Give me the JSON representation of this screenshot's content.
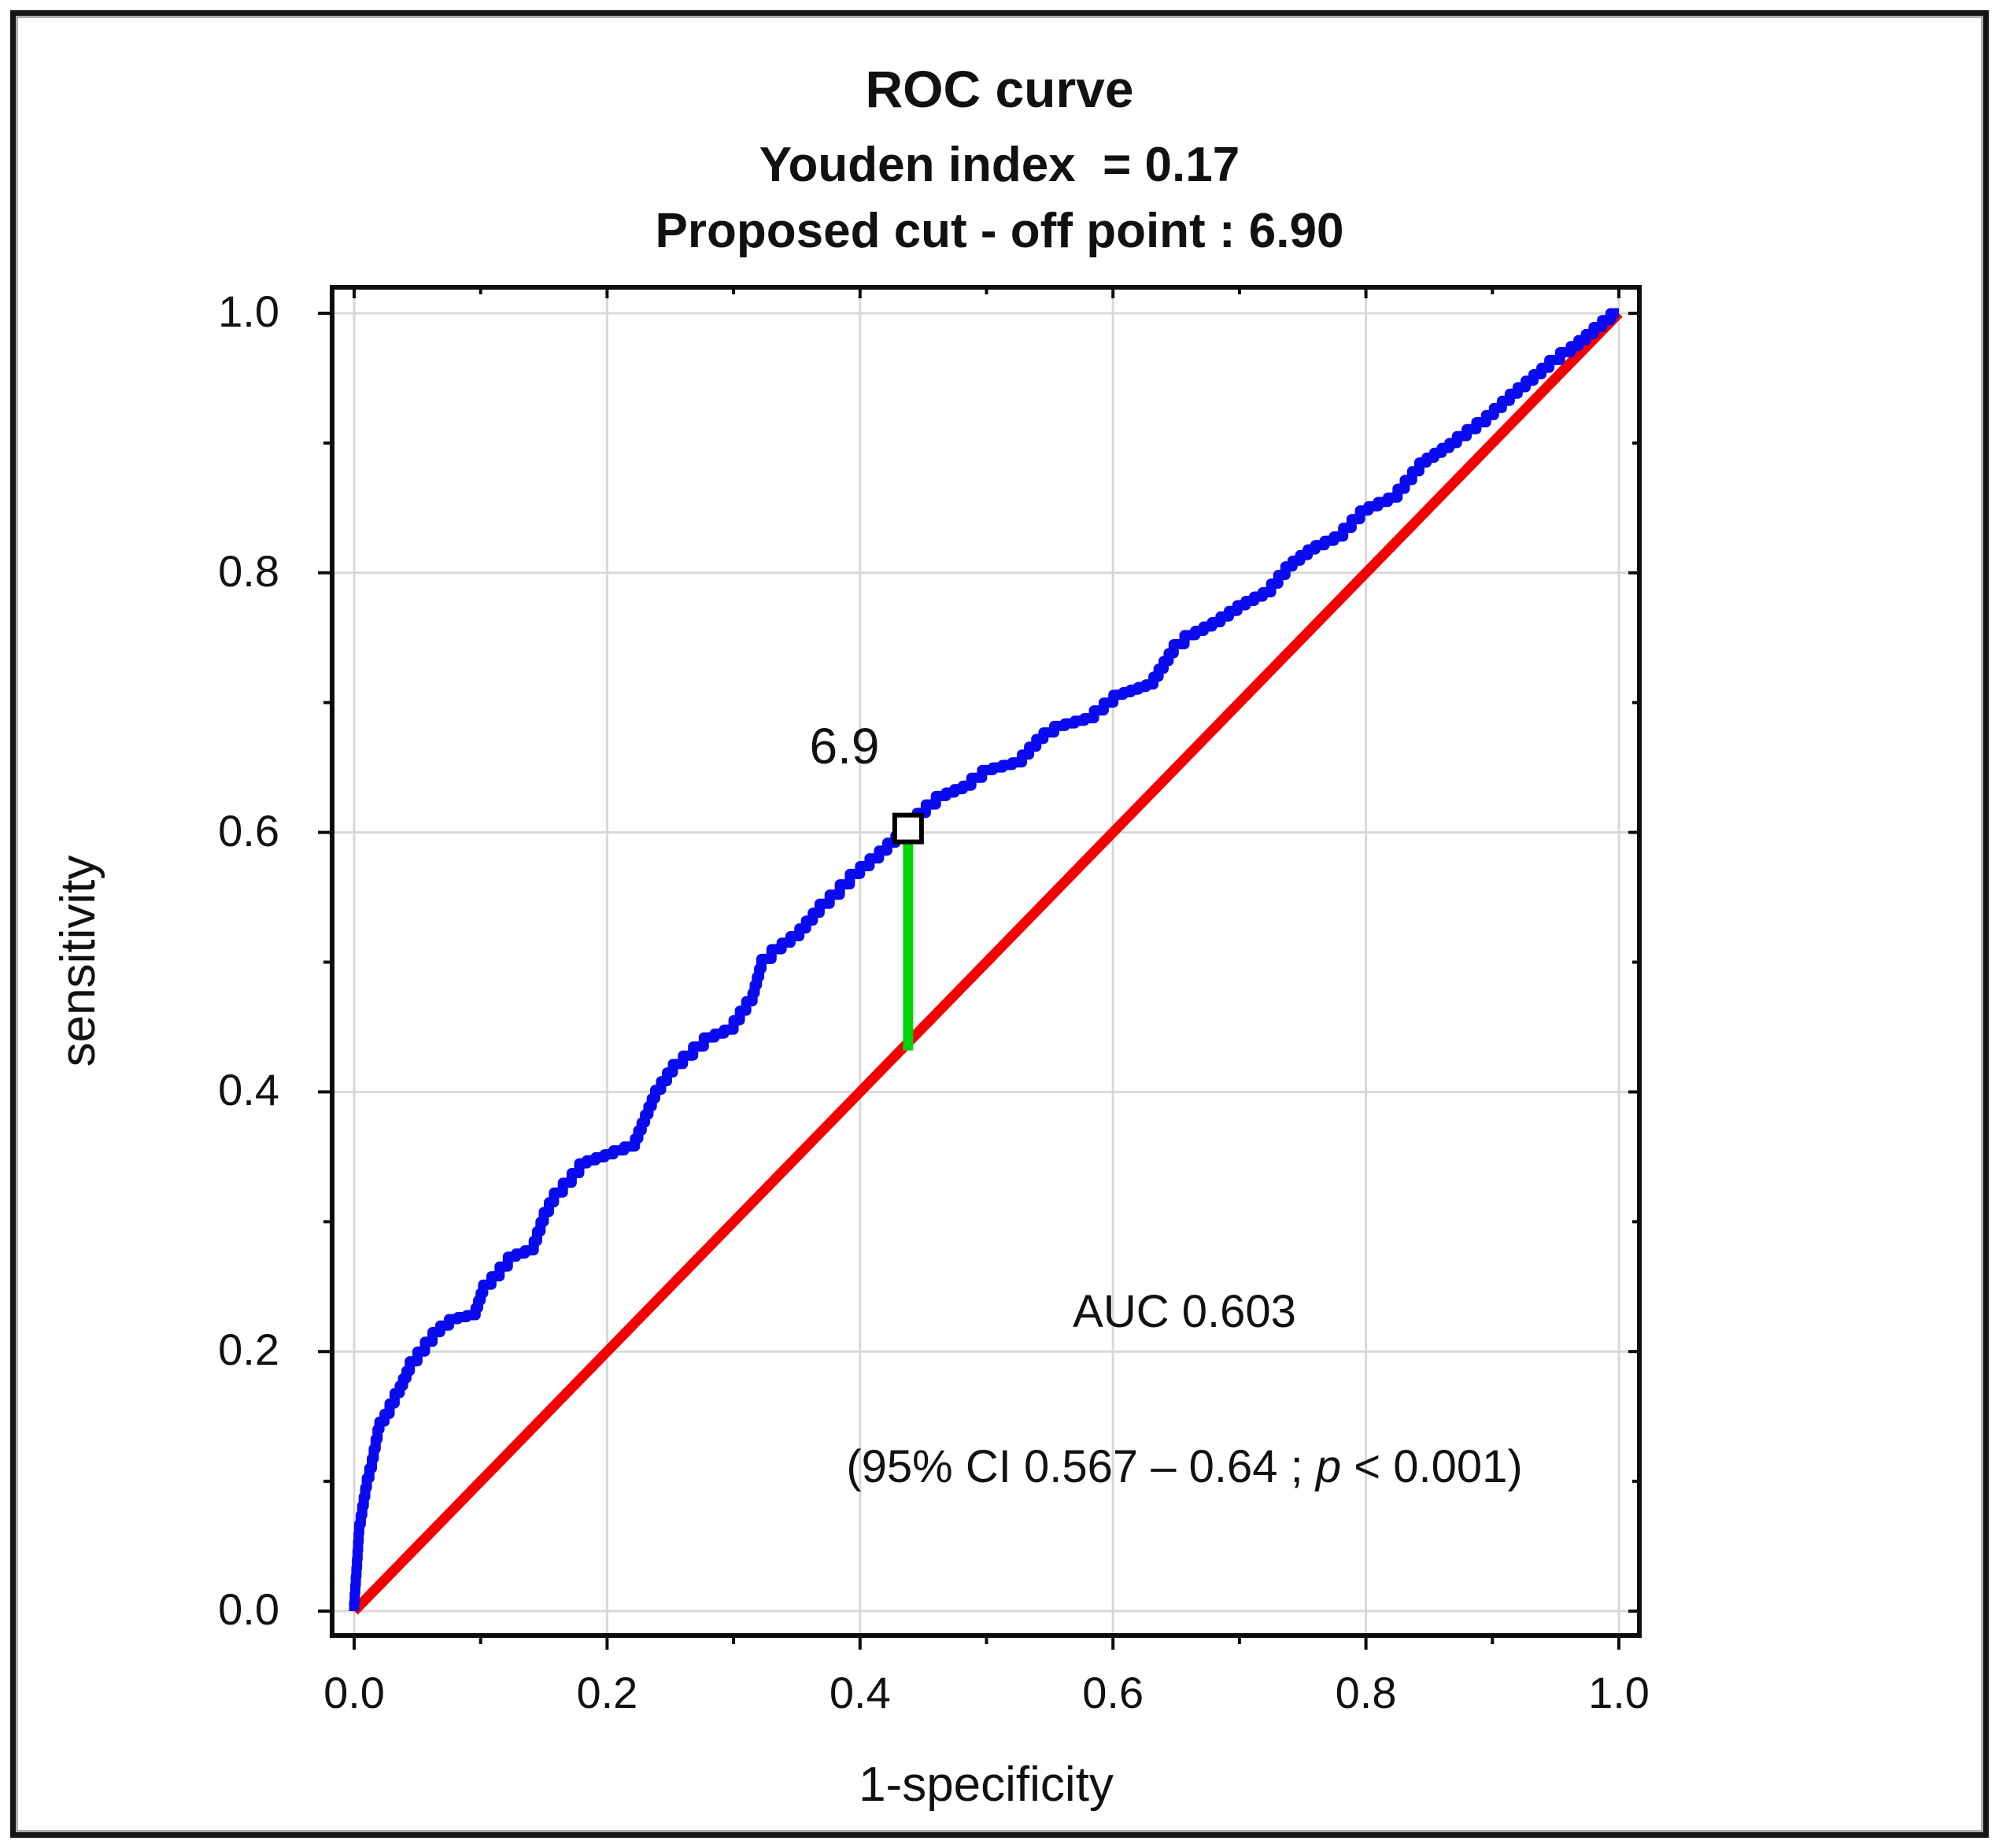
{
  "figure": {
    "titles": {
      "line1": "ROC curve",
      "line2": "Youden index  = 0.17",
      "line3": "Proposed cut - off point : 6.90"
    },
    "annotations": {
      "cutoff_label": "6.9",
      "auc_text": "AUC 0.603",
      "ci_prefix": "(95% CI 0.567 – 0.64 ; ",
      "ci_italic": "p",
      "ci_suffix": " < 0.001)"
    }
  },
  "chart_data": {
    "type": "line",
    "title": "ROC curve",
    "subtitle": [
      "Youden index  = 0.17",
      "Proposed cut - off point : 6.90"
    ],
    "xlabel": "1-specificity",
    "ylabel": "sensitivity",
    "xlim": [
      0.0,
      1.0
    ],
    "ylim": [
      0.0,
      1.0
    ],
    "xticks": [
      0.0,
      0.2,
      0.4,
      0.6,
      0.8,
      1.0
    ],
    "yticks": [
      0.0,
      0.2,
      0.4,
      0.6,
      0.8,
      1.0
    ],
    "xtick_labels": [
      "0.0",
      "0.2",
      "0.4",
      "0.6",
      "0.8",
      "1.0"
    ],
    "ytick_labels": [
      "0.0",
      "0.2",
      "0.4",
      "0.6",
      "0.8",
      "1.0"
    ],
    "minor_tick_step": 0.1,
    "grid": true,
    "legend": "none",
    "colors": {
      "roc": "#0A0AF0",
      "diagonal": "#F40000",
      "cutoff_line": "#00D40A",
      "marker_stroke": "#000000",
      "marker_fill": "#FFFFFF",
      "grid": "#D8D8D8",
      "frame": "#0D0D0D",
      "tick": "#0D0D0D",
      "text": "#111111"
    },
    "series": [
      {
        "name": "empirical ROC curve",
        "style": "staircase",
        "points": [
          [
            0.0,
            0.0
          ],
          [
            0.004,
            0.06
          ],
          [
            0.01,
            0.095
          ],
          [
            0.014,
            0.11
          ],
          [
            0.02,
            0.14
          ],
          [
            0.028,
            0.152
          ],
          [
            0.036,
            0.168
          ],
          [
            0.044,
            0.185
          ],
          [
            0.056,
            0.2
          ],
          [
            0.068,
            0.215
          ],
          [
            0.082,
            0.225
          ],
          [
            0.096,
            0.228
          ],
          [
            0.102,
            0.245
          ],
          [
            0.115,
            0.258
          ],
          [
            0.128,
            0.273
          ],
          [
            0.142,
            0.278
          ],
          [
            0.15,
            0.3
          ],
          [
            0.158,
            0.315
          ],
          [
            0.172,
            0.33
          ],
          [
            0.184,
            0.345
          ],
          [
            0.205,
            0.352
          ],
          [
            0.222,
            0.358
          ],
          [
            0.238,
            0.395
          ],
          [
            0.252,
            0.415
          ],
          [
            0.268,
            0.428
          ],
          [
            0.285,
            0.442
          ],
          [
            0.3,
            0.448
          ],
          [
            0.315,
            0.47
          ],
          [
            0.322,
            0.495
          ],
          [
            0.338,
            0.51
          ],
          [
            0.352,
            0.52
          ],
          [
            0.368,
            0.538
          ],
          [
            0.384,
            0.552
          ],
          [
            0.4,
            0.568
          ],
          [
            0.415,
            0.58
          ],
          [
            0.428,
            0.592
          ],
          [
            0.438,
            0.603
          ],
          [
            0.452,
            0.615
          ],
          [
            0.468,
            0.628
          ],
          [
            0.488,
            0.636
          ],
          [
            0.505,
            0.648
          ],
          [
            0.528,
            0.654
          ],
          [
            0.545,
            0.672
          ],
          [
            0.562,
            0.682
          ],
          [
            0.585,
            0.688
          ],
          [
            0.608,
            0.706
          ],
          [
            0.632,
            0.714
          ],
          [
            0.648,
            0.738
          ],
          [
            0.665,
            0.752
          ],
          [
            0.685,
            0.762
          ],
          [
            0.705,
            0.775
          ],
          [
            0.725,
            0.785
          ],
          [
            0.742,
            0.805
          ],
          [
            0.76,
            0.818
          ],
          [
            0.782,
            0.828
          ],
          [
            0.802,
            0.848
          ],
          [
            0.825,
            0.858
          ],
          [
            0.848,
            0.885
          ],
          [
            0.872,
            0.9
          ],
          [
            0.895,
            0.916
          ],
          [
            0.92,
            0.938
          ],
          [
            0.945,
            0.958
          ],
          [
            0.962,
            0.97
          ],
          [
            0.98,
            0.984
          ],
          [
            1.0,
            1.0
          ]
        ]
      },
      {
        "name": "reference diagonal",
        "style": "line",
        "points": [
          [
            0.0,
            0.0
          ],
          [
            1.0,
            1.0
          ]
        ]
      }
    ],
    "cutoff": {
      "value": "6.9",
      "proposed_cutoff_text": "6.90",
      "youden_index": "0.17",
      "x": 0.438,
      "y": 0.603,
      "drop_to_y": 0.432
    },
    "auc": 0.603,
    "auc_ci_low": 0.567,
    "auc_ci_high": 0.64,
    "p_value": "< 0.001"
  }
}
